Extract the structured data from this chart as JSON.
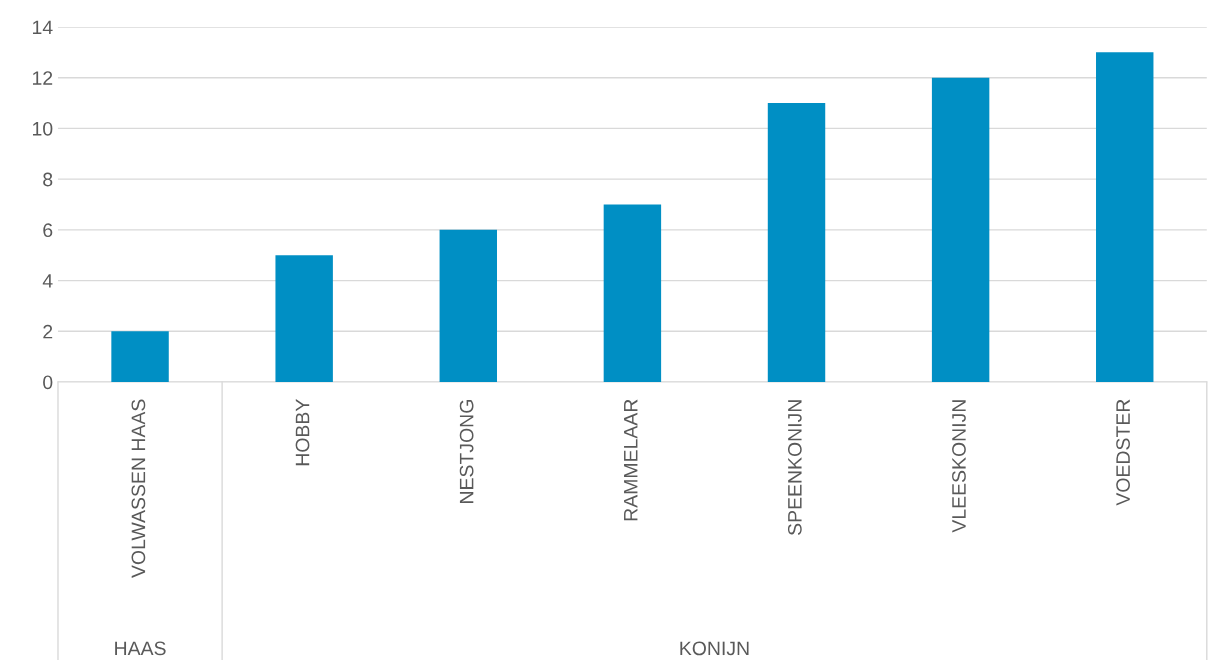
{
  "chart_data": {
    "type": "bar",
    "categories": [
      "VOLWASSEN HAAS",
      "HOBBY",
      "NESTJONG",
      "RAMMELAAR",
      "SPEENKONIJN",
      "VLEESKONIJN",
      "VOEDSTER"
    ],
    "values": [
      2,
      5,
      6,
      7,
      11,
      12,
      13
    ],
    "color": "#008fc4",
    "ylim": [
      0,
      14
    ],
    "yticks": [
      0,
      2,
      4,
      6,
      8,
      10,
      12,
      14
    ],
    "grid": "y",
    "annotations": [
      "HAAS",
      "KONIJN"
    ]
  }
}
